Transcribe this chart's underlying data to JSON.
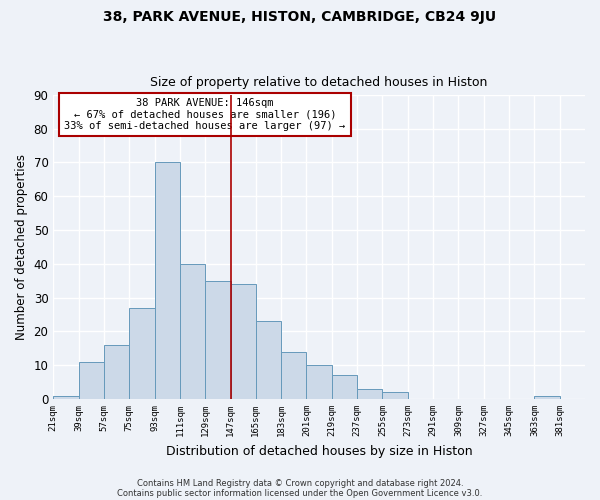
{
  "title": "38, PARK AVENUE, HISTON, CAMBRIDGE, CB24 9JU",
  "subtitle": "Size of property relative to detached houses in Histon",
  "xlabel": "Distribution of detached houses by size in Histon",
  "ylabel": "Number of detached properties",
  "bin_edges": [
    21,
    39,
    57,
    75,
    93,
    111,
    129,
    147,
    165,
    183,
    201,
    219,
    237,
    255,
    273,
    291,
    309,
    327,
    345,
    363,
    381,
    399
  ],
  "counts": [
    1,
    11,
    16,
    27,
    70,
    40,
    35,
    34,
    23,
    14,
    10,
    7,
    3,
    2,
    0,
    0,
    0,
    0,
    0,
    1,
    0
  ],
  "bar_color": "#ccd9e8",
  "bar_edge_color": "#6699bb",
  "vline_x": 147,
  "vline_color": "#aa0000",
  "ylim": [
    0,
    90
  ],
  "yticks": [
    0,
    10,
    20,
    30,
    40,
    50,
    60,
    70,
    80,
    90
  ],
  "annotation_title": "38 PARK AVENUE: 146sqm",
  "annotation_line1": "← 67% of detached houses are smaller (196)",
  "annotation_line2": "33% of semi-detached houses are larger (97) →",
  "annotation_box_color": "#ffffff",
  "annotation_box_edge": "#aa0000",
  "footnote1": "Contains HM Land Registry data © Crown copyright and database right 2024.",
  "footnote2": "Contains public sector information licensed under the Open Government Licence v3.0.",
  "tick_labels": [
    "21sqm",
    "39sqm",
    "57sqm",
    "75sqm",
    "93sqm",
    "111sqm",
    "129sqm",
    "147sqm",
    "165sqm",
    "183sqm",
    "201sqm",
    "219sqm",
    "237sqm",
    "255sqm",
    "273sqm",
    "291sqm",
    "309sqm",
    "327sqm",
    "345sqm",
    "363sqm",
    "381sqm"
  ],
  "background_color": "#eef2f8",
  "grid_color": "#ffffff",
  "plot_bg_color": "#dde8f0"
}
